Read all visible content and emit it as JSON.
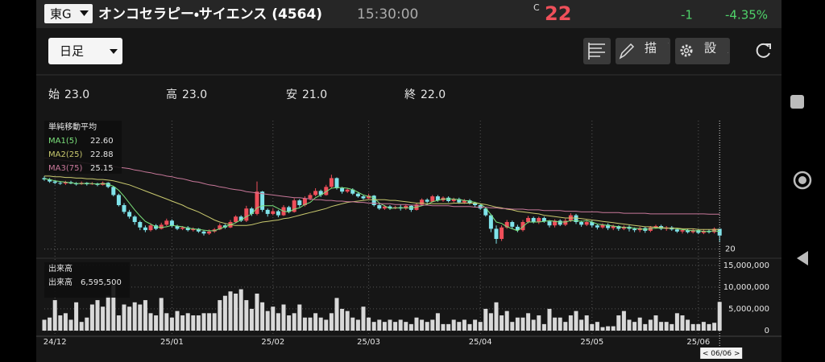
{
  "header": {
    "market": "東G",
    "name": "オンコセラピー・サイエンス (4564)",
    "time": "15:30:00",
    "price_prefix": "C",
    "price": "22",
    "change": "-1",
    "change_pct": "-4.35%"
  },
  "toolbar": {
    "period": "日足",
    "draw": "描画",
    "settings": "設定"
  },
  "ohlc": [
    {
      "label": "始",
      "value": "23.0"
    },
    {
      "label": "高",
      "value": "23.0"
    },
    {
      "label": "安",
      "value": "21.0"
    },
    {
      "label": "終",
      "value": "22.0"
    }
  ],
  "cursor_label": "< 06/06 >",
  "chart_data": [
    {
      "type": "candlestick",
      "legend_title": "単純移動平均",
      "categories": [
        null,
        null,
        "24/12",
        null,
        null,
        null,
        null,
        null,
        null,
        null,
        null,
        null,
        null,
        null,
        null,
        null,
        null,
        null,
        null,
        null,
        null,
        null,
        null,
        null,
        "25/01",
        null,
        null,
        null,
        null,
        null,
        null,
        null,
        null,
        null,
        null,
        null,
        null,
        null,
        null,
        null,
        null,
        null,
        null,
        "25/02",
        null,
        null,
        null,
        null,
        null,
        null,
        null,
        null,
        null,
        null,
        null,
        null,
        null,
        null,
        null,
        null,
        null,
        "25/03",
        null,
        null,
        null,
        null,
        null,
        null,
        null,
        null,
        null,
        null,
        null,
        null,
        null,
        null,
        null,
        null,
        null,
        null,
        null,
        null,
        "25/04",
        null,
        null,
        null,
        null,
        null,
        null,
        null,
        null,
        null,
        null,
        null,
        null,
        null,
        null,
        null,
        null,
        null,
        null,
        null,
        null,
        "25/05",
        null,
        null,
        null,
        null,
        null,
        null,
        null,
        null,
        null,
        null,
        null,
        null,
        null,
        null,
        null,
        null,
        null,
        null,
        null,
        "25/06",
        null,
        null,
        null,
        null
      ],
      "open": [
        30.5,
        30.3,
        30.0,
        29.8,
        29.7,
        29.9,
        29.7,
        29.6,
        29.8,
        29.6,
        29.7,
        29.5,
        29.8,
        29.2,
        28.0,
        26.5,
        25.5,
        24.8,
        24.0,
        23.2,
        22.8,
        23.5,
        23.0,
        23.6,
        24.2,
        23.4,
        23.0,
        23.2,
        22.8,
        23.0,
        22.6,
        22.3,
        22.6,
        22.9,
        23.5,
        23.2,
        24.0,
        24.8,
        24.2,
        26.0,
        25.2,
        28.5,
        25.8,
        25.2,
        25.6,
        25.0,
        26.2,
        25.5,
        27.2,
        26.5,
        27.5,
        28.0,
        28.6,
        28.0,
        29.2,
        30.5,
        29.0,
        28.5,
        28.8,
        28.2,
        27.8,
        27.5,
        27.9,
        26.5,
        26.0,
        26.3,
        26.0,
        26.2,
        26.0,
        26.4,
        25.8,
        26.6,
        27.3,
        27.0,
        27.8,
        27.2,
        27.6,
        27.1,
        27.4,
        26.9,
        27.2,
        26.8,
        26.5,
        26.0,
        25.0,
        23.0,
        21.5,
        23.2,
        24.0,
        23.3,
        22.8,
        24.0,
        24.6,
        24.0,
        24.6,
        24.1,
        23.5,
        24.2,
        23.6,
        24.2,
        25.0,
        24.0,
        23.6,
        24.0,
        23.5,
        23.2,
        23.6,
        23.1,
        23.4,
        23.0,
        23.3,
        23.0,
        22.8,
        23.1,
        22.7,
        23.2,
        23.4,
        23.0,
        23.2,
        22.9,
        22.6,
        22.8,
        22.5,
        22.8,
        22.4,
        22.7,
        22.5,
        23
      ],
      "high": [
        30.8,
        30.5,
        30.2,
        30.0,
        30.1,
        30.1,
        29.9,
        30.0,
        29.9,
        29.9,
        29.8,
        30.0,
        29.9,
        29.3,
        28.2,
        26.8,
        25.8,
        25.0,
        24.2,
        23.5,
        23.8,
        23.7,
        23.9,
        24.5,
        24.4,
        23.6,
        23.4,
        23.4,
        23.2,
        23.1,
        22.8,
        22.9,
        23.1,
        23.8,
        23.7,
        24.3,
        25.0,
        25.0,
        26.4,
        26.2,
        30.0,
        28.6,
        26.0,
        26.0,
        25.8,
        26.5,
        26.4,
        27.5,
        27.4,
        27.8,
        28.3,
        29.0,
        28.8,
        29.5,
        31.0,
        30.6,
        29.2,
        29.0,
        29.0,
        28.4,
        28.0,
        28.2,
        28.0,
        26.8,
        26.5,
        26.5,
        26.4,
        26.6,
        26.6,
        26.5,
        26.8,
        27.5,
        27.5,
        28.0,
        28.0,
        27.8,
        27.8,
        27.6,
        27.6,
        27.4,
        27.4,
        27.0,
        26.7,
        26.2,
        25.2,
        23.5,
        23.5,
        24.3,
        24.2,
        23.6,
        24.3,
        24.9,
        24.8,
        24.8,
        24.8,
        24.3,
        24.4,
        24.4,
        24.5,
        25.3,
        25.2,
        24.2,
        24.3,
        24.2,
        23.7,
        23.8,
        23.8,
        23.6,
        23.5,
        23.5,
        23.5,
        23.2,
        23.3,
        23.3,
        23.4,
        23.6,
        23.6,
        23.4,
        23.4,
        23.1,
        23.0,
        23.0,
        23.0,
        23.0,
        22.9,
        22.9,
        23.2,
        23
      ],
      "low": [
        30.1,
        29.8,
        29.6,
        29.5,
        29.5,
        29.6,
        29.4,
        29.5,
        29.4,
        29.5,
        29.3,
        29.4,
        29.0,
        27.8,
        26.3,
        25.2,
        24.5,
        23.6,
        22.8,
        22.5,
        22.6,
        22.8,
        22.9,
        23.4,
        23.2,
        22.8,
        22.8,
        22.6,
        22.6,
        22.4,
        22.0,
        22.1,
        22.4,
        22.8,
        23.0,
        23.1,
        23.8,
        24.0,
        24.0,
        24.9,
        25.0,
        25.5,
        24.8,
        25.0,
        24.7,
        24.9,
        25.3,
        25.4,
        26.2,
        26.3,
        27.2,
        27.8,
        27.7,
        27.9,
        29.0,
        28.8,
        28.2,
        28.3,
        28.0,
        27.6,
        27.3,
        27.4,
        26.3,
        25.8,
        25.8,
        25.8,
        25.9,
        25.7,
        25.8,
        25.5,
        25.7,
        26.5,
        26.8,
        26.9,
        27.0,
        27.0,
        26.9,
        26.9,
        26.7,
        26.7,
        26.6,
        26.2,
        25.8,
        24.8,
        22.5,
        20.8,
        21.2,
        23.0,
        23.0,
        22.5,
        22.6,
        23.8,
        23.8,
        23.7,
        23.9,
        23.2,
        23.2,
        23.4,
        23.4,
        24.0,
        23.7,
        23.3,
        23.4,
        23.2,
        22.9,
        23.0,
        22.8,
        22.8,
        22.7,
        22.8,
        22.6,
        22.5,
        22.5,
        22.4,
        22.5,
        23.0,
        22.8,
        22.7,
        22.7,
        22.4,
        22.3,
        22.3,
        22.3,
        22.2,
        22.2,
        22.3,
        22.3,
        21
      ],
      "close": [
        30.3,
        30.0,
        29.8,
        29.7,
        29.9,
        29.7,
        29.6,
        29.8,
        29.6,
        29.7,
        29.5,
        29.8,
        29.2,
        28.0,
        26.5,
        25.5,
        24.8,
        24.0,
        23.2,
        22.8,
        23.5,
        23.0,
        23.6,
        24.2,
        23.4,
        23.0,
        23.2,
        22.8,
        23.0,
        22.6,
        22.3,
        22.6,
        22.9,
        23.5,
        23.2,
        24.0,
        24.8,
        24.2,
        26.0,
        25.2,
        28.5,
        25.8,
        25.2,
        25.6,
        25.0,
        26.2,
        25.5,
        27.2,
        26.5,
        27.5,
        28.0,
        28.6,
        28.0,
        29.2,
        30.5,
        29.0,
        28.5,
        28.8,
        28.2,
        27.8,
        27.5,
        27.9,
        26.5,
        26.0,
        26.3,
        26.0,
        26.2,
        26.0,
        26.4,
        25.8,
        26.6,
        27.3,
        27.0,
        27.8,
        27.2,
        27.6,
        27.1,
        27.4,
        26.9,
        27.2,
        26.8,
        26.5,
        26.0,
        25.0,
        23.0,
        21.5,
        23.2,
        24.0,
        23.3,
        22.8,
        24.0,
        24.6,
        24.0,
        24.6,
        24.1,
        23.5,
        24.2,
        23.6,
        24.2,
        25.0,
        24.0,
        23.6,
        24.0,
        23.5,
        23.2,
        23.6,
        23.1,
        23.4,
        23.0,
        23.3,
        23.0,
        22.8,
        23.1,
        22.7,
        23.2,
        23.4,
        23.0,
        23.2,
        22.9,
        22.6,
        22.8,
        22.5,
        22.8,
        22.4,
        22.7,
        22.5,
        23.0,
        22
      ],
      "up_color": "#ef4f5a",
      "down_color": "#7fe3ea",
      "series": [
        {
          "name": "MA1(5)",
          "color": "#7be07b",
          "legend_value": "22.60",
          "values": [
            30.4,
            30.3,
            30.1,
            30.0,
            29.9,
            29.8,
            29.7,
            29.7,
            29.7,
            29.7,
            29.6,
            29.7,
            29.6,
            29.3,
            28.7,
            27.8,
            26.8,
            25.8,
            24.9,
            24.1,
            23.7,
            23.3,
            23.2,
            23.3,
            23.5,
            23.4,
            23.3,
            23.1,
            23.0,
            22.9,
            22.8,
            22.7,
            22.7,
            23.0,
            23.3,
            23.6,
            23.9,
            24.3,
            24.8,
            25.2,
            26.1,
            26.4,
            26.4,
            26.4,
            26.0,
            25.6,
            25.5,
            25.9,
            26.1,
            26.6,
            26.9,
            27.6,
            28.0,
            28.5,
            29.0,
            29.1,
            29.1,
            29.0,
            28.8,
            28.4,
            28.0,
            27.8,
            27.6,
            26.8,
            26.4,
            26.0,
            26.1,
            26.1,
            26.1,
            26.1,
            26.2,
            26.4,
            26.6,
            27.0,
            27.2,
            27.4,
            27.4,
            27.4,
            27.3,
            27.2,
            27.1,
            26.9,
            26.7,
            26.1,
            25.1,
            24.0,
            23.8,
            23.3,
            23.0,
            22.7,
            23.3,
            24.0,
            24.0,
            24.0,
            24.1,
            24.2,
            24.1,
            24.0,
            24.0,
            24.2,
            24.2,
            24.1,
            24.2,
            24.0,
            23.7,
            23.6,
            23.5,
            23.4,
            23.3,
            23.2,
            23.2,
            23.1,
            23.0,
            22.9,
            23.0,
            23.1,
            23.1,
            23.1,
            23.1,
            23.0,
            22.9,
            22.8,
            22.7,
            22.7,
            22.6,
            22.6,
            22.7,
            22.6
          ]
        },
        {
          "name": "MA2(25)",
          "color": "#c9c96e",
          "legend_value": "22.88",
          "values": [
            30.8,
            30.8,
            30.7,
            30.7,
            30.6,
            30.6,
            30.5,
            30.5,
            30.4,
            30.4,
            30.3,
            30.3,
            30.2,
            30.1,
            29.9,
            29.7,
            29.5,
            29.2,
            28.9,
            28.6,
            28.3,
            28.0,
            27.7,
            27.4,
            27.1,
            26.8,
            26.5,
            26.1,
            25.8,
            25.5,
            25.1,
            24.7,
            24.3,
            24.0,
            23.8,
            23.6,
            23.5,
            23.5,
            23.5,
            23.6,
            23.8,
            24.0,
            24.1,
            24.2,
            24.3,
            24.5,
            24.6,
            24.8,
            25.0,
            25.2,
            25.4,
            25.6,
            25.8,
            26.0,
            26.3,
            26.5,
            26.7,
            26.9,
            27.0,
            27.1,
            27.2,
            27.3,
            27.3,
            27.3,
            27.3,
            27.2,
            27.2,
            27.1,
            27.0,
            26.9,
            26.8,
            26.8,
            26.7,
            26.7,
            26.7,
            26.7,
            26.7,
            26.8,
            26.8,
            26.8,
            26.8,
            26.8,
            26.7,
            26.6,
            26.4,
            26.2,
            26.1,
            25.9,
            25.8,
            25.6,
            25.5,
            25.4,
            25.3,
            25.2,
            25.0,
            24.9,
            24.8,
            24.7,
            24.6,
            24.6,
            24.6,
            24.5,
            24.4,
            24.3,
            24.2,
            24.1,
            24.0,
            23.9,
            23.8,
            23.7,
            23.6,
            23.5,
            23.4,
            23.3,
            23.3,
            23.2,
            23.2,
            23.1,
            23.1,
            23.1,
            23.0,
            23.0,
            23.0,
            22.9,
            22.9,
            22.9,
            22.9,
            22.88
          ]
        },
        {
          "name": "MA3(75)",
          "color": "#c8789a",
          "legend_value": "25.15",
          "values": [
            33.5,
            33.4,
            33.3,
            33.2,
            33.1,
            33.0,
            32.9,
            32.8,
            32.7,
            32.6,
            32.5,
            32.4,
            32.3,
            32.2,
            32.1,
            32.0,
            31.9,
            31.7,
            31.6,
            31.4,
            31.3,
            31.1,
            31.0,
            30.8,
            30.7,
            30.5,
            30.4,
            30.2,
            30.0,
            29.9,
            29.7,
            29.5,
            29.4,
            29.2,
            29.1,
            28.9,
            28.8,
            28.7,
            28.5,
            28.4,
            28.3,
            28.2,
            28.1,
            28.0,
            27.9,
            27.8,
            27.7,
            27.6,
            27.6,
            27.5,
            27.4,
            27.3,
            27.3,
            27.2,
            27.2,
            27.1,
            27.1,
            27.0,
            27.0,
            26.9,
            26.9,
            26.8,
            26.8,
            26.7,
            26.7,
            26.7,
            26.6,
            26.6,
            26.6,
            26.5,
            26.5,
            26.5,
            26.5,
            26.4,
            26.4,
            26.4,
            26.4,
            26.3,
            26.3,
            26.3,
            26.3,
            26.2,
            26.2,
            26.2,
            26.1,
            26.1,
            26.0,
            26.0,
            25.9,
            25.9,
            25.9,
            25.8,
            25.8,
            25.8,
            25.7,
            25.7,
            25.7,
            25.7,
            25.6,
            25.6,
            25.6,
            25.5,
            25.5,
            25.5,
            25.5,
            25.4,
            25.4,
            25.4,
            25.4,
            25.3,
            25.3,
            25.3,
            25.3,
            25.3,
            25.2,
            25.2,
            25.2,
            25.2,
            25.2,
            25.2,
            25.2,
            25.2,
            25.2,
            25.2,
            25.2,
            25.15,
            25.15,
            25.15
          ]
        }
      ],
      "ylim": [
        19,
        39
      ],
      "yticks": [
        20
      ],
      "grid": true
    },
    {
      "type": "bar",
      "title": "出来高",
      "legend_label": "出来高",
      "legend_value": "6,595,500",
      "color": "#d9d9d9",
      "values": [
        2500000,
        3000000,
        7000000,
        3500000,
        4000000,
        2500000,
        6500000,
        2000000,
        3000000,
        6000000,
        7000000,
        5500000,
        8000000,
        10500000,
        3500000,
        6000000,
        5500000,
        6500000,
        6000000,
        7000000,
        4000000,
        3500000,
        7500000,
        4000000,
        3000000,
        4500000,
        3500000,
        4000000,
        3500000,
        3500000,
        4000000,
        4000000,
        4000000,
        7000000,
        8000000,
        9000000,
        8500000,
        9500000,
        7000000,
        5000000,
        8500000,
        6500000,
        4500000,
        5500000,
        4000000,
        6000000,
        3500000,
        4000000,
        6000000,
        3000000,
        3000000,
        4000000,
        3000000,
        2500000,
        4000000,
        7500000,
        5000000,
        4500000,
        3000000,
        2500000,
        5500000,
        3000000,
        2000000,
        2500000,
        2000000,
        2500000,
        2000000,
        2500000,
        2000000,
        1500000,
        3000000,
        2500000,
        2000000,
        2500000,
        4000000,
        1500000,
        1500000,
        2500000,
        2000000,
        2500000,
        1500000,
        2500000,
        2000000,
        5000000,
        4000000,
        6500000,
        3500000,
        4500000,
        2000000,
        3000000,
        3000000,
        4000000,
        2500000,
        3500000,
        1500000,
        5000000,
        3000000,
        3000000,
        2000000,
        3500000,
        4500000,
        2500000,
        3500000,
        1500000,
        2000000,
        800000,
        1000000,
        1000000,
        3500000,
        4500000,
        2500000,
        2000000,
        3000000,
        1500000,
        2500000,
        3500000,
        2000000,
        2000000,
        1500000,
        4000000,
        3500000,
        2500000,
        1500000,
        1500000,
        2000000,
        1500000,
        1800000,
        6595500
      ],
      "ylim": [
        0,
        15700000
      ],
      "yticks": [
        0,
        {
          "value": 5000000,
          "label": "5,000,000"
        },
        {
          "value": 10000000,
          "label": "10,000,000"
        },
        {
          "value": 15000000,
          "label": "15,000,000"
        }
      ],
      "grid": true
    }
  ]
}
